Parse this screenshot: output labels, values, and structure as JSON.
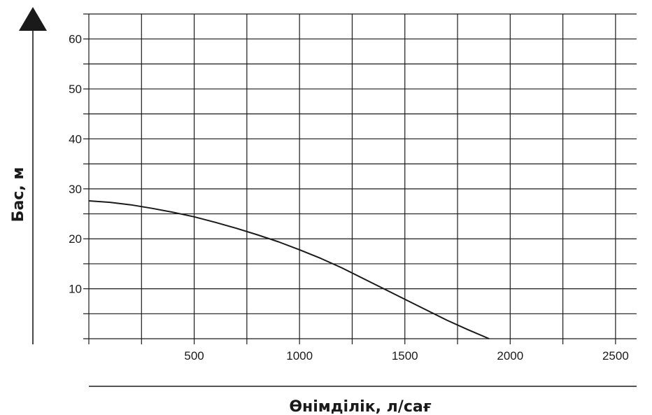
{
  "chart_data": {
    "type": "line",
    "title": "",
    "xlabel": "Өнімділік, л/сағ",
    "ylabel": "Бас, м",
    "xlim": [
      0,
      2600
    ],
    "ylim": [
      0,
      65
    ],
    "x_ticks": [
      500,
      1000,
      1500,
      2000,
      2500
    ],
    "x_tick_labels": [
      "500",
      "1000",
      "1500",
      "2000",
      "2500"
    ],
    "y_ticks": [
      10,
      20,
      30,
      40,
      50,
      60
    ],
    "y_tick_labels": [
      "10",
      "20",
      "30",
      "40",
      "50",
      "60"
    ],
    "x_minor_step": 250,
    "y_minor_step": 5,
    "grid": true,
    "legend": "none",
    "series": [
      {
        "color": "#1a1a1a",
        "x": [
          0,
          100,
          200,
          300,
          400,
          500,
          600,
          700,
          800,
          900,
          1000,
          1100,
          1200,
          1300,
          1400,
          1500,
          1600,
          1700,
          1800,
          1900
        ],
        "y": [
          27.6,
          27.3,
          26.8,
          26.1,
          25.3,
          24.4,
          23.3,
          22.1,
          20.8,
          19.4,
          17.8,
          16.1,
          14.2,
          12.1,
          10.0,
          7.9,
          5.8,
          3.7,
          1.8,
          0.0
        ]
      }
    ]
  }
}
